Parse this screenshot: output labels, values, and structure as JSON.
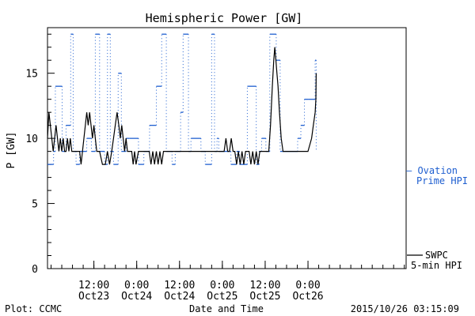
{
  "chart_data": {
    "type": "line",
    "title": "Hemispheric Power [GW]",
    "xlabel": "Date and Time",
    "ylabel": "P [GW]",
    "ylim": [
      0,
      18.5
    ],
    "xlim": [
      0,
      100.5
    ],
    "x_unit": "hours from 2015-10-22 23:00 UT",
    "yticks": [
      {
        "value": 0,
        "label": "0"
      },
      {
        "value": 5,
        "label": "5"
      },
      {
        "value": 10,
        "label": "10"
      },
      {
        "value": 15,
        "label": "15"
      }
    ],
    "xticks": [
      {
        "x": 13,
        "line1": "12:00",
        "line2": "Oct23"
      },
      {
        "x": 25,
        "line1": "0:00",
        "line2": "Oct24"
      },
      {
        "x": 37,
        "line1": "12:00",
        "line2": "Oct24"
      },
      {
        "x": 49,
        "line1": "0:00",
        "line2": "Oct25"
      },
      {
        "x": 61,
        "line1": "12:00",
        "line2": "Oct25"
      },
      {
        "x": 73,
        "line1": "0:00",
        "line2": "Oct26"
      }
    ],
    "grid": false,
    "legend_position": "right",
    "series": [
      {
        "name": "Ovation Prime HPI",
        "legend_line1": "— Ovation",
        "legend_line2": "Prime HPI",
        "color": "#1f5fd0",
        "style": "dashed-step-with-dotted-risers",
        "x": [
          0,
          1.7,
          2.2,
          4.1,
          5.2,
          6.5,
          7.2,
          8.0,
          9.0,
          11.0,
          12.3,
          13.4,
          14.6,
          16.0,
          16.8,
          17.6,
          18.5,
          19.8,
          20.7,
          22.0,
          23.0,
          25.5,
          27.0,
          28.6,
          30.5,
          32.0,
          33.3,
          34.9,
          35.8,
          37.3,
          38.0,
          39.5,
          40.2,
          43.0,
          44.2,
          46.0,
          46.8,
          47.5,
          48.0,
          49.5,
          51.4,
          53.0,
          53.8,
          56.0,
          58.5,
          59.3,
          60.0,
          61.2,
          62.3,
          64.1,
          65.2,
          66.0,
          69.0,
          70.1,
          71.0,
          72.0,
          73.2,
          75.0,
          75.3
        ],
        "y": [
          8,
          9,
          14,
          9,
          11,
          18,
          9,
          8,
          9,
          10,
          9,
          18,
          9,
          8,
          18,
          9,
          8,
          15,
          9,
          10,
          10,
          8,
          9,
          11,
          14,
          18,
          9,
          8,
          9,
          12,
          18,
          9,
          10,
          9,
          8,
          18,
          9,
          10,
          9,
          9,
          8,
          9,
          8,
          14,
          8,
          9,
          10,
          9,
          18,
          16,
          9,
          9,
          9,
          10,
          11,
          13,
          13,
          16,
          9
        ]
      },
      {
        "name": "SWPC 5-min HPI",
        "legend_line1": "SWPC",
        "legend_line2": "5-min HPI",
        "color": "#000000",
        "style": "solid",
        "x": [
          0,
          0.4,
          0.8,
          1.2,
          1.6,
          2.0,
          2.4,
          2.8,
          3.2,
          3.6,
          4.0,
          4.4,
          4.8,
          5.2,
          5.6,
          6.0,
          6.4,
          6.8,
          7.2,
          8.0,
          8.5,
          9.0,
          9.4,
          9.8,
          10.2,
          10.6,
          11.0,
          11.4,
          11.8,
          12.2,
          12.6,
          13.0,
          13.8,
          14.6,
          15.4,
          16.2,
          16.8,
          17.4,
          18.0,
          18.5,
          19.0,
          19.5,
          20.0,
          20.4,
          20.8,
          21.2,
          21.6,
          22.0,
          22.4,
          22.8,
          23.2,
          23.6,
          24.0,
          24.4,
          24.8,
          25.5,
          27.0,
          28.5,
          29.0,
          29.5,
          30.0,
          30.5,
          31.0,
          31.5,
          32.0,
          32.5,
          33.0,
          34.0,
          36.0,
          38.0,
          40.0,
          42.0,
          44.0,
          45.0,
          46.0,
          46.5,
          47.0,
          47.5,
          48.0,
          48.5,
          49.0,
          49.5,
          50.0,
          50.5,
          51.0,
          51.5,
          52.0,
          52.5,
          53.0,
          53.5,
          54.0,
          54.5,
          55.0,
          55.5,
          56.0,
          56.5,
          57.0,
          57.5,
          58.0,
          58.5,
          59.0,
          59.5,
          60.0,
          61.0,
          62.0,
          62.5,
          63.0,
          63.4,
          63.7,
          64.0,
          64.3,
          64.6,
          65.0,
          65.5,
          66.0,
          66.5,
          67.0,
          67.5,
          68.0,
          68.5,
          69.0,
          70.0,
          71.0,
          72.0,
          73.0,
          74.0,
          74.5,
          75.0,
          75.2,
          75.3
        ],
        "y": [
          10,
          12,
          11,
          10,
          9,
          10,
          11,
          10,
          9,
          10,
          9,
          10,
          9,
          9,
          10,
          9,
          10,
          9,
          9,
          9,
          9,
          9,
          8,
          9,
          10,
          11,
          12,
          11,
          12,
          11,
          10,
          11,
          9,
          9,
          8,
          8,
          9,
          8,
          9,
          10,
          11,
          12,
          11,
          10,
          11,
          10,
          9,
          10,
          9,
          9,
          9,
          9,
          8,
          9,
          8,
          9,
          9,
          9,
          8,
          9,
          8,
          9,
          8,
          9,
          8,
          9,
          9,
          9,
          9,
          9,
          9,
          9,
          9,
          9,
          9,
          9,
          9,
          9,
          9,
          9,
          9,
          9,
          10,
          9,
          9,
          10,
          9,
          9,
          8,
          9,
          8,
          9,
          8,
          9,
          9,
          9,
          8,
          9,
          8,
          9,
          8,
          9,
          9,
          9,
          9,
          11,
          14,
          16,
          17,
          16,
          15,
          14,
          12,
          10,
          9,
          9,
          9,
          9,
          9,
          9,
          9,
          9,
          9,
          9,
          9,
          10,
          11,
          12,
          13,
          15
        ]
      }
    ]
  },
  "footer": {
    "left": "Plot: CCMC",
    "center": "Date and Time",
    "right": "2015/10/26 03:15:09"
  }
}
